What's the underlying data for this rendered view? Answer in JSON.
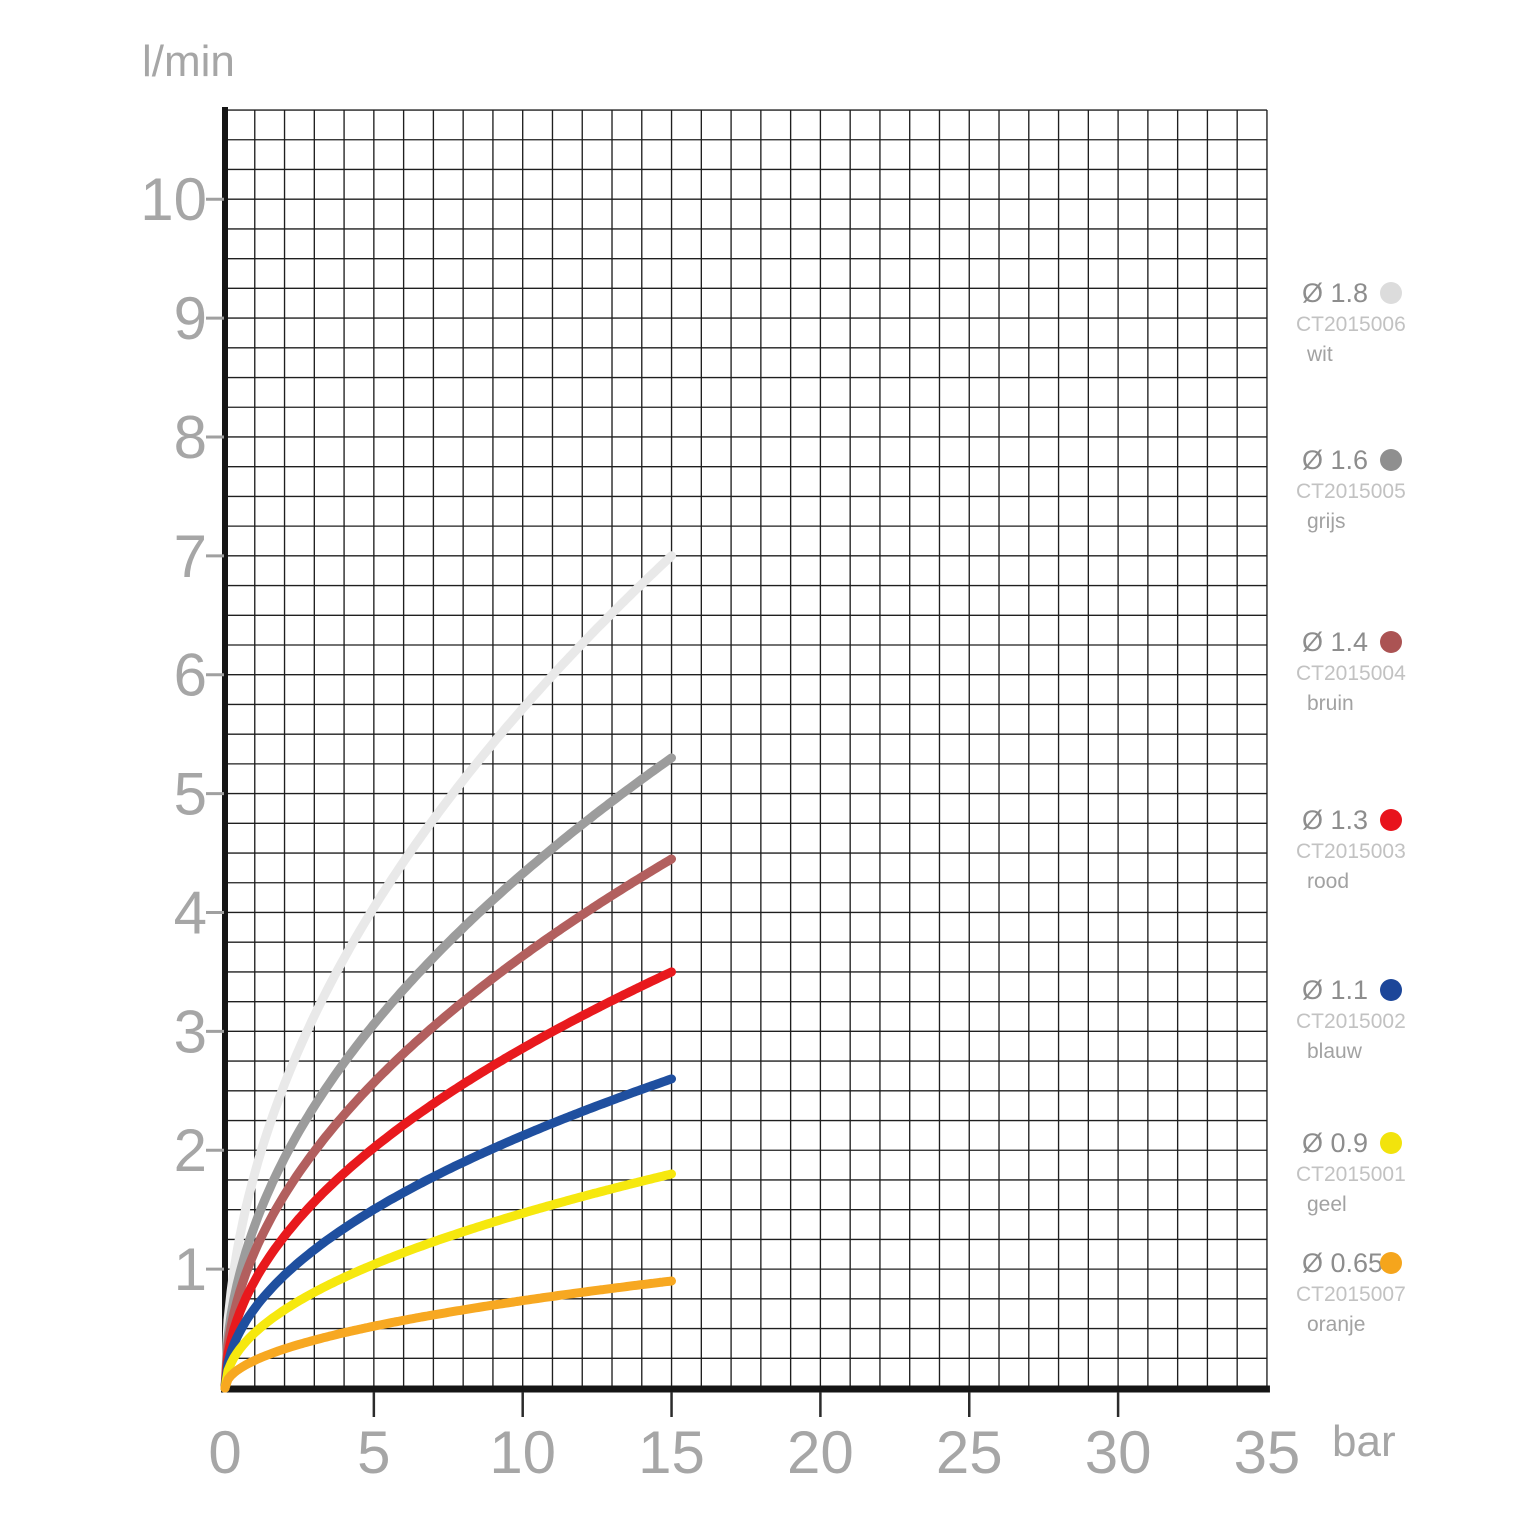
{
  "chart_data": {
    "type": "line",
    "title": "",
    "xlabel": "bar",
    "ylabel": "l/min",
    "xlim": [
      0,
      35
    ],
    "ylim": [
      0,
      10.75
    ],
    "x_ticks": [
      0,
      5,
      10,
      15,
      20,
      25,
      30,
      35
    ],
    "y_ticks": [
      1,
      2,
      3,
      4,
      5,
      6,
      7,
      8,
      9,
      10
    ],
    "grid": "on",
    "minor_grid_step": {
      "x_bar": 1,
      "y_lmin": 0.25
    },
    "legend_position": "right",
    "curve_model": "Q(P) = Q15 * sqrt(P/15), drawn from P=0 to P=15 bar",
    "series": [
      {
        "diameter_label": "Ø 1.8",
        "code": "CT2015006",
        "color_name": "wit",
        "hex": "#e9e9e9",
        "dot_hex": "#dcdcdc",
        "q_at_15_bar": 7.0,
        "points_bar_lmin": [
          [
            0,
            0
          ],
          [
            1,
            1.81
          ],
          [
            2,
            2.56
          ],
          [
            5,
            4.04
          ],
          [
            10,
            5.72
          ],
          [
            15,
            7.0
          ]
        ]
      },
      {
        "diameter_label": "Ø 1.6",
        "code": "CT2015005",
        "color_name": "grijs",
        "hex": "#9c9c9c",
        "dot_hex": "#8f8f8f",
        "q_at_15_bar": 5.3,
        "points_bar_lmin": [
          [
            0,
            0
          ],
          [
            1,
            1.37
          ],
          [
            2,
            1.94
          ],
          [
            5,
            3.06
          ],
          [
            10,
            4.33
          ],
          [
            15,
            5.3
          ]
        ]
      },
      {
        "diameter_label": "Ø 1.4",
        "code": "CT2015004",
        "color_name": "bruin",
        "hex": "#b25f5e",
        "dot_hex": "#ab5353",
        "q_at_15_bar": 4.45,
        "points_bar_lmin": [
          [
            0,
            0
          ],
          [
            1,
            1.15
          ],
          [
            2,
            1.62
          ],
          [
            5,
            2.57
          ],
          [
            10,
            3.64
          ],
          [
            15,
            4.45
          ]
        ]
      },
      {
        "diameter_label": "Ø 1.3",
        "code": "CT2015003",
        "color_name": "rood",
        "hex": "#e8191d",
        "dot_hex": "#e8131c",
        "q_at_15_bar": 3.5,
        "points_bar_lmin": [
          [
            0,
            0
          ],
          [
            1,
            0.9
          ],
          [
            2,
            1.28
          ],
          [
            5,
            2.02
          ],
          [
            10,
            2.86
          ],
          [
            15,
            3.5
          ]
        ]
      },
      {
        "diameter_label": "Ø 1.1",
        "code": "CT2015002",
        "color_name": "blauw",
        "hex": "#1f4f9f",
        "dot_hex": "#1c4699",
        "q_at_15_bar": 2.6,
        "points_bar_lmin": [
          [
            0,
            0
          ],
          [
            1,
            0.67
          ],
          [
            2,
            0.95
          ],
          [
            5,
            1.5
          ],
          [
            10,
            2.12
          ],
          [
            15,
            2.6
          ]
        ]
      },
      {
        "diameter_label": "Ø 0.9",
        "code": "CT2015001",
        "color_name": "geel",
        "hex": "#f6e80e",
        "dot_hex": "#f2e30c",
        "q_at_15_bar": 1.8,
        "points_bar_lmin": [
          [
            0,
            0
          ],
          [
            1,
            0.46
          ],
          [
            2,
            0.66
          ],
          [
            5,
            1.04
          ],
          [
            10,
            1.47
          ],
          [
            15,
            1.8
          ]
        ]
      },
      {
        "diameter_label": "Ø 0.65",
        "code": "CT2015007",
        "color_name": "oranje",
        "hex": "#f7a821",
        "dot_hex": "#f5a51c",
        "q_at_15_bar": 0.9,
        "points_bar_lmin": [
          [
            0,
            0
          ],
          [
            1,
            0.23
          ],
          [
            2,
            0.33
          ],
          [
            5,
            0.52
          ],
          [
            10,
            0.73
          ],
          [
            15,
            0.9
          ]
        ]
      }
    ]
  },
  "colors": {
    "grid_line": "#1f1f1f",
    "axis_line": "#151515",
    "x_tick": "#2b2b2b",
    "y_tick": "#a0a0a0",
    "tick_label": "#a6a6a6",
    "unit_label": "#a6a6a6",
    "legend_title": "#8d8d8d",
    "legend_code": "#c2c2c2",
    "legend_name": "#a2a2a2"
  }
}
